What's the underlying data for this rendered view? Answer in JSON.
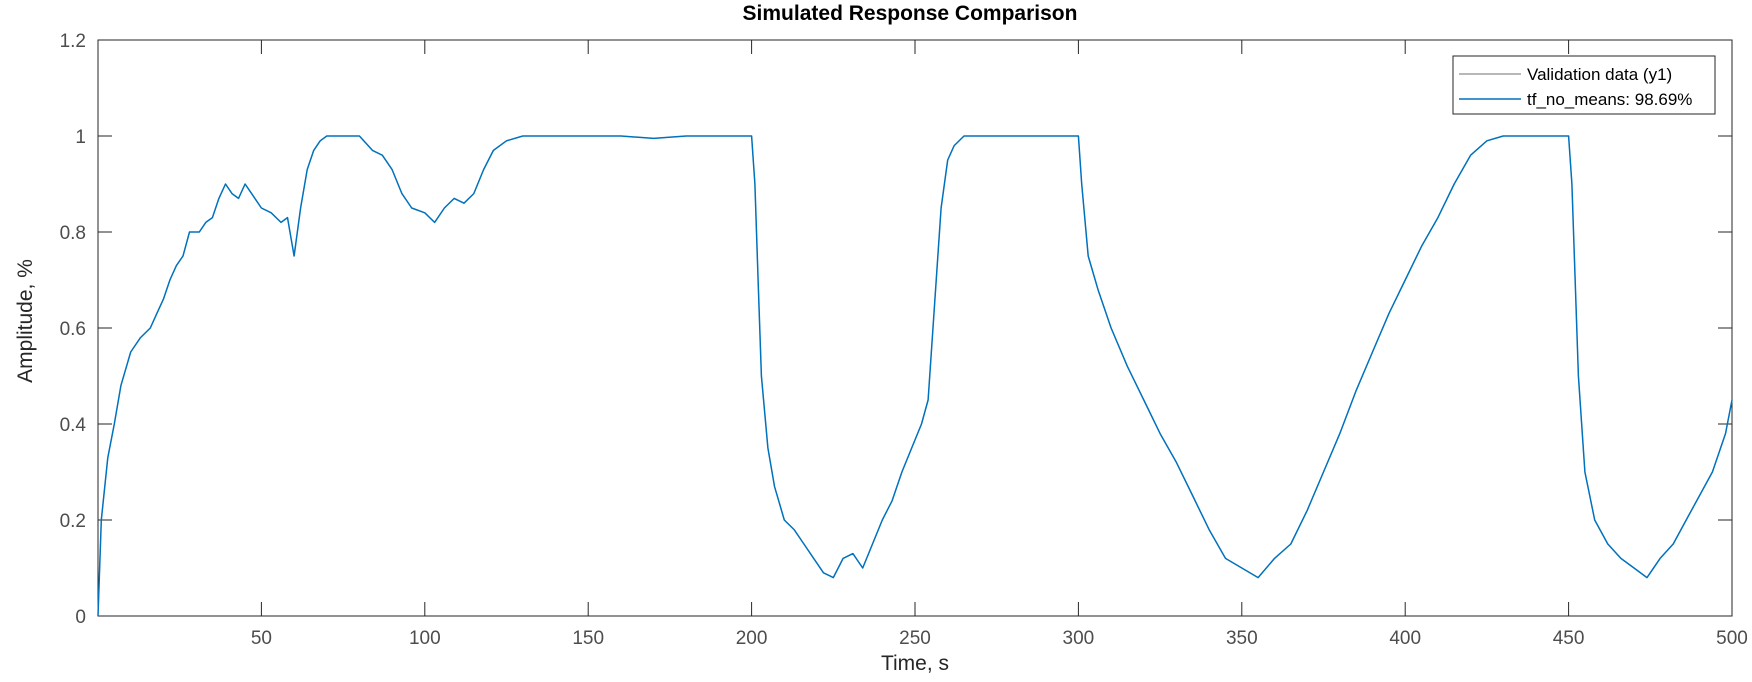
{
  "chart_data": {
    "type": "line",
    "title": "Simulated Response Comparison",
    "xlabel": "Time, s",
    "ylabel": "Amplitude, %",
    "xlim": [
      0,
      500
    ],
    "ylim": [
      0,
      1.2
    ],
    "xticks": [
      50,
      100,
      150,
      200,
      250,
      300,
      350,
      400,
      450,
      500
    ],
    "yticks": [
      0,
      0.2,
      0.4,
      0.6,
      0.8,
      1,
      1.2
    ],
    "grid": false,
    "legend_position": "top-right",
    "series": [
      {
        "name": "Validation data (y1)",
        "color": "#a0a0a0",
        "points": [
          [
            0,
            0
          ],
          [
            1,
            0.2
          ],
          [
            3,
            0.33
          ],
          [
            5,
            0.4
          ],
          [
            7,
            0.48
          ],
          [
            10,
            0.55
          ],
          [
            13,
            0.58
          ],
          [
            16,
            0.6
          ],
          [
            18,
            0.63
          ],
          [
            20,
            0.66
          ],
          [
            22,
            0.7
          ],
          [
            24,
            0.73
          ],
          [
            26,
            0.75
          ],
          [
            28,
            0.8
          ],
          [
            31,
            0.8
          ],
          [
            33,
            0.82
          ],
          [
            35,
            0.83
          ],
          [
            37,
            0.87
          ],
          [
            39,
            0.9
          ],
          [
            41,
            0.88
          ],
          [
            43,
            0.87
          ],
          [
            45,
            0.9
          ],
          [
            47,
            0.88
          ],
          [
            50,
            0.85
          ],
          [
            53,
            0.84
          ],
          [
            56,
            0.82
          ],
          [
            58,
            0.83
          ],
          [
            60,
            0.75
          ],
          [
            62,
            0.85
          ],
          [
            64,
            0.93
          ],
          [
            66,
            0.97
          ],
          [
            68,
            0.99
          ],
          [
            70,
            1.0
          ],
          [
            75,
            1.0
          ],
          [
            80,
            1.0
          ],
          [
            84,
            0.97
          ],
          [
            87,
            0.96
          ],
          [
            90,
            0.93
          ],
          [
            93,
            0.88
          ],
          [
            96,
            0.85
          ],
          [
            100,
            0.84
          ],
          [
            103,
            0.82
          ],
          [
            106,
            0.85
          ],
          [
            109,
            0.87
          ],
          [
            112,
            0.86
          ],
          [
            115,
            0.88
          ],
          [
            118,
            0.93
          ],
          [
            121,
            0.97
          ],
          [
            125,
            0.99
          ],
          [
            130,
            1.0
          ],
          [
            140,
            1.0
          ],
          [
            150,
            1.0
          ],
          [
            160,
            1.0
          ],
          [
            170,
            0.995
          ],
          [
            180,
            1.0
          ],
          [
            190,
            1.0
          ],
          [
            200,
            1.0
          ],
          [
            201,
            0.9
          ],
          [
            202,
            0.7
          ],
          [
            203,
            0.5
          ],
          [
            205,
            0.35
          ],
          [
            207,
            0.27
          ],
          [
            210,
            0.2
          ],
          [
            213,
            0.18
          ],
          [
            216,
            0.15
          ],
          [
            219,
            0.12
          ],
          [
            222,
            0.09
          ],
          [
            225,
            0.08
          ],
          [
            228,
            0.12
          ],
          [
            231,
            0.13
          ],
          [
            234,
            0.1
          ],
          [
            237,
            0.15
          ],
          [
            240,
            0.2
          ],
          [
            243,
            0.24
          ],
          [
            246,
            0.3
          ],
          [
            249,
            0.35
          ],
          [
            252,
            0.4
          ],
          [
            254,
            0.45
          ],
          [
            256,
            0.65
          ],
          [
            258,
            0.85
          ],
          [
            260,
            0.95
          ],
          [
            262,
            0.98
          ],
          [
            265,
            1.0
          ],
          [
            280,
            1.0
          ],
          [
            300,
            1.0
          ],
          [
            301,
            0.9
          ],
          [
            303,
            0.75
          ],
          [
            306,
            0.68
          ],
          [
            310,
            0.6
          ],
          [
            315,
            0.52
          ],
          [
            320,
            0.45
          ],
          [
            325,
            0.38
          ],
          [
            330,
            0.32
          ],
          [
            335,
            0.25
          ],
          [
            340,
            0.18
          ],
          [
            345,
            0.12
          ],
          [
            350,
            0.1
          ],
          [
            355,
            0.08
          ],
          [
            360,
            0.12
          ],
          [
            365,
            0.15
          ],
          [
            370,
            0.22
          ],
          [
            375,
            0.3
          ],
          [
            380,
            0.38
          ],
          [
            385,
            0.47
          ],
          [
            390,
            0.55
          ],
          [
            395,
            0.63
          ],
          [
            400,
            0.7
          ],
          [
            405,
            0.77
          ],
          [
            410,
            0.83
          ],
          [
            415,
            0.9
          ],
          [
            420,
            0.96
          ],
          [
            425,
            0.99
          ],
          [
            430,
            1.0
          ],
          [
            450,
            1.0
          ],
          [
            451,
            0.9
          ],
          [
            453,
            0.5
          ],
          [
            455,
            0.3
          ],
          [
            458,
            0.2
          ],
          [
            462,
            0.15
          ],
          [
            466,
            0.12
          ],
          [
            470,
            0.1
          ],
          [
            474,
            0.08
          ],
          [
            478,
            0.12
          ],
          [
            482,
            0.15
          ],
          [
            486,
            0.2
          ],
          [
            490,
            0.25
          ],
          [
            494,
            0.3
          ],
          [
            498,
            0.38
          ],
          [
            500,
            0.45
          ]
        ]
      },
      {
        "name": "tf_no_means: 98.69%",
        "color": "#0072bd",
        "points": [
          [
            0,
            0
          ],
          [
            1,
            0.2
          ],
          [
            3,
            0.33
          ],
          [
            5,
            0.4
          ],
          [
            7,
            0.48
          ],
          [
            10,
            0.55
          ],
          [
            13,
            0.58
          ],
          [
            16,
            0.6
          ],
          [
            18,
            0.63
          ],
          [
            20,
            0.66
          ],
          [
            22,
            0.7
          ],
          [
            24,
            0.73
          ],
          [
            26,
            0.75
          ],
          [
            28,
            0.8
          ],
          [
            31,
            0.8
          ],
          [
            33,
            0.82
          ],
          [
            35,
            0.83
          ],
          [
            37,
            0.87
          ],
          [
            39,
            0.9
          ],
          [
            41,
            0.88
          ],
          [
            43,
            0.87
          ],
          [
            45,
            0.9
          ],
          [
            47,
            0.88
          ],
          [
            50,
            0.85
          ],
          [
            53,
            0.84
          ],
          [
            56,
            0.82
          ],
          [
            58,
            0.83
          ],
          [
            60,
            0.75
          ],
          [
            62,
            0.85
          ],
          [
            64,
            0.93
          ],
          [
            66,
            0.97
          ],
          [
            68,
            0.99
          ],
          [
            70,
            1.0
          ],
          [
            75,
            1.0
          ],
          [
            80,
            1.0
          ],
          [
            84,
            0.97
          ],
          [
            87,
            0.96
          ],
          [
            90,
            0.93
          ],
          [
            93,
            0.88
          ],
          [
            96,
            0.85
          ],
          [
            100,
            0.84
          ],
          [
            103,
            0.82
          ],
          [
            106,
            0.85
          ],
          [
            109,
            0.87
          ],
          [
            112,
            0.86
          ],
          [
            115,
            0.88
          ],
          [
            118,
            0.93
          ],
          [
            121,
            0.97
          ],
          [
            125,
            0.99
          ],
          [
            130,
            1.0
          ],
          [
            140,
            1.0
          ],
          [
            150,
            1.0
          ],
          [
            160,
            1.0
          ],
          [
            170,
            0.995
          ],
          [
            180,
            1.0
          ],
          [
            190,
            1.0
          ],
          [
            200,
            1.0
          ],
          [
            201,
            0.9
          ],
          [
            202,
            0.7
          ],
          [
            203,
            0.5
          ],
          [
            205,
            0.35
          ],
          [
            207,
            0.27
          ],
          [
            210,
            0.2
          ],
          [
            213,
            0.18
          ],
          [
            216,
            0.15
          ],
          [
            219,
            0.12
          ],
          [
            222,
            0.09
          ],
          [
            225,
            0.08
          ],
          [
            228,
            0.12
          ],
          [
            231,
            0.13
          ],
          [
            234,
            0.1
          ],
          [
            237,
            0.15
          ],
          [
            240,
            0.2
          ],
          [
            243,
            0.24
          ],
          [
            246,
            0.3
          ],
          [
            249,
            0.35
          ],
          [
            252,
            0.4
          ],
          [
            254,
            0.45
          ],
          [
            256,
            0.65
          ],
          [
            258,
            0.85
          ],
          [
            260,
            0.95
          ],
          [
            262,
            0.98
          ],
          [
            265,
            1.0
          ],
          [
            280,
            1.0
          ],
          [
            300,
            1.0
          ],
          [
            301,
            0.9
          ],
          [
            303,
            0.75
          ],
          [
            306,
            0.68
          ],
          [
            310,
            0.6
          ],
          [
            315,
            0.52
          ],
          [
            320,
            0.45
          ],
          [
            325,
            0.38
          ],
          [
            330,
            0.32
          ],
          [
            335,
            0.25
          ],
          [
            340,
            0.18
          ],
          [
            345,
            0.12
          ],
          [
            350,
            0.1
          ],
          [
            355,
            0.08
          ],
          [
            360,
            0.12
          ],
          [
            365,
            0.15
          ],
          [
            370,
            0.22
          ],
          [
            375,
            0.3
          ],
          [
            380,
            0.38
          ],
          [
            385,
            0.47
          ],
          [
            390,
            0.55
          ],
          [
            395,
            0.63
          ],
          [
            400,
            0.7
          ],
          [
            405,
            0.77
          ],
          [
            410,
            0.83
          ],
          [
            415,
            0.9
          ],
          [
            420,
            0.96
          ],
          [
            425,
            0.99
          ],
          [
            430,
            1.0
          ],
          [
            450,
            1.0
          ],
          [
            451,
            0.9
          ],
          [
            453,
            0.5
          ],
          [
            455,
            0.3
          ],
          [
            458,
            0.2
          ],
          [
            462,
            0.15
          ],
          [
            466,
            0.12
          ],
          [
            470,
            0.1
          ],
          [
            474,
            0.08
          ],
          [
            478,
            0.12
          ],
          [
            482,
            0.15
          ],
          [
            486,
            0.2
          ],
          [
            490,
            0.25
          ],
          [
            494,
            0.3
          ],
          [
            498,
            0.38
          ],
          [
            500,
            0.45
          ]
        ]
      }
    ]
  }
}
